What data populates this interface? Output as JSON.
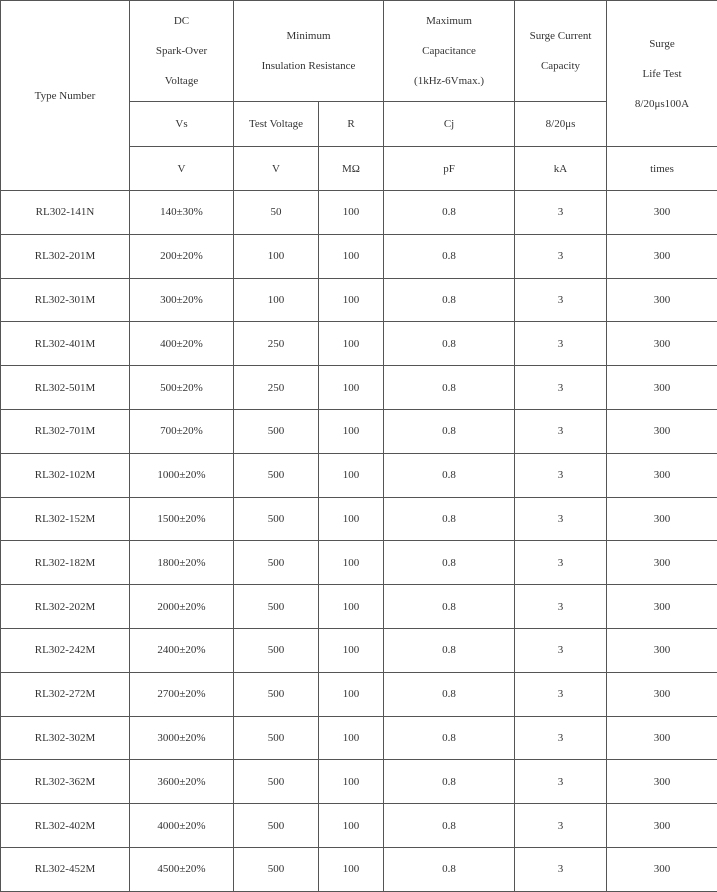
{
  "header": {
    "type_number": "Type Number",
    "spark_over": [
      "DC",
      "Spark-Over",
      "Voltage"
    ],
    "insulation": [
      "Minimum",
      "Insulation Resistance"
    ],
    "capacitance": [
      "Maximum",
      "Capacitance",
      "(1kHz-6Vmax.)"
    ],
    "surge_current": [
      "Surge Current",
      "Capacity"
    ],
    "surge_life": [
      "Surge",
      "Life Test",
      "8/20μs100A"
    ]
  },
  "symbols": [
    "Vs",
    "Test Voltage",
    "R",
    "Cj",
    "8/20μs"
  ],
  "units": [
    "V",
    "V",
    "MΩ",
    "pF",
    "kA",
    "times"
  ],
  "rows": [
    [
      "RL302-141N",
      "140±30%",
      50,
      100,
      0.8,
      3,
      300
    ],
    [
      "RL302-201M",
      "200±20%",
      100,
      100,
      0.8,
      3,
      300
    ],
    [
      "RL302-301M",
      "300±20%",
      100,
      100,
      0.8,
      3,
      300
    ],
    [
      "RL302-401M",
      "400±20%",
      250,
      100,
      0.8,
      3,
      300
    ],
    [
      "RL302-501M",
      "500±20%",
      250,
      100,
      0.8,
      3,
      300
    ],
    [
      "RL302-701M",
      "700±20%",
      500,
      100,
      0.8,
      3,
      300
    ],
    [
      "RL302-102M",
      "1000±20%",
      500,
      100,
      0.8,
      3,
      300
    ],
    [
      "RL302-152M",
      "1500±20%",
      500,
      100,
      0.8,
      3,
      300
    ],
    [
      "RL302-182M",
      "1800±20%",
      500,
      100,
      0.8,
      3,
      300
    ],
    [
      "RL302-202M",
      "2000±20%",
      500,
      100,
      0.8,
      3,
      300
    ],
    [
      "RL302-242M",
      "2400±20%",
      500,
      100,
      0.8,
      3,
      300
    ],
    [
      "RL302-272M",
      "2700±20%",
      500,
      100,
      0.8,
      3,
      300
    ],
    [
      "RL302-302M",
      "3000±20%",
      500,
      100,
      0.8,
      3,
      300
    ],
    [
      "RL302-362M",
      "3600±20%",
      500,
      100,
      0.8,
      3,
      300
    ],
    [
      "RL302-402M",
      "4000±20%",
      500,
      100,
      0.8,
      3,
      300
    ],
    [
      "RL302-452M",
      "4500±20%",
      500,
      100,
      0.8,
      3,
      300
    ]
  ]
}
